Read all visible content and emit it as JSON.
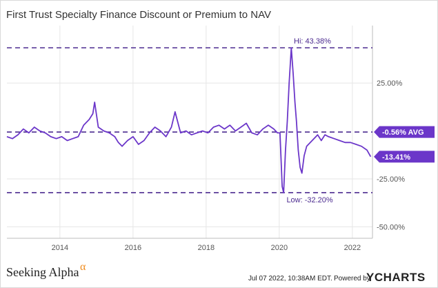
{
  "chart_data": {
    "type": "line",
    "title": "First Trust Specialty Finance Discount or Premium to NAV",
    "y_tick_labels": [
      "25.00%",
      "-25.00%",
      "-50.00%"
    ],
    "y_ticks": [
      25,
      -25,
      -50
    ],
    "x_tick_labels": [
      "2014",
      "2016",
      "2018",
      "2020",
      "2022"
    ],
    "x_ticks": [
      2014,
      2016,
      2018,
      2020,
      2022
    ],
    "xlim": [
      2012.55,
      2022.55
    ],
    "ylim": [
      -56,
      55
    ],
    "series": [
      {
        "color": "#6b36c9",
        "x": [
          2012.55,
          2012.7,
          2012.85,
          2013.0,
          2013.15,
          2013.3,
          2013.45,
          2013.6,
          2013.75,
          2013.9,
          2014.05,
          2014.2,
          2014.35,
          2014.5,
          2014.65,
          2014.8,
          2014.9,
          2014.95,
          2015.05,
          2015.2,
          2015.35,
          2015.5,
          2015.6,
          2015.7,
          2015.85,
          2016.0,
          2016.15,
          2016.3,
          2016.45,
          2016.6,
          2016.75,
          2016.9,
          2017.05,
          2017.15,
          2017.3,
          2017.45,
          2017.6,
          2017.75,
          2017.9,
          2018.05,
          2018.2,
          2018.35,
          2018.5,
          2018.65,
          2018.8,
          2018.95,
          2019.1,
          2019.25,
          2019.4,
          2019.55,
          2019.7,
          2019.85,
          2019.95,
          2020.02,
          2020.08,
          2020.12,
          2020.17,
          2020.22,
          2020.27,
          2020.33,
          2020.38,
          2020.43,
          2020.47,
          2020.52,
          2020.57,
          2020.62,
          2020.68,
          2020.75,
          2020.85,
          2020.95,
          2021.05,
          2021.15,
          2021.25,
          2021.35,
          2021.5,
          2021.65,
          2021.8,
          2021.95,
          2022.1,
          2022.25,
          2022.4,
          2022.5
        ],
        "values": [
          -3,
          -4,
          -2,
          1,
          -1,
          2,
          0,
          -1,
          -3,
          -4,
          -3,
          -5,
          -4,
          -3,
          3,
          6,
          9,
          15,
          2,
          0,
          -1,
          -3,
          -6,
          -8,
          -5,
          -3,
          -7,
          -5,
          -1,
          2,
          0,
          -3,
          2,
          10,
          -1,
          0,
          -2,
          -1,
          0,
          -1,
          2,
          3,
          1,
          3,
          0,
          2,
          4,
          -1,
          -2,
          1,
          3,
          1,
          -1,
          -1,
          -29,
          -32.2,
          -10,
          5,
          25,
          43.38,
          30,
          15,
          5,
          -10,
          -19,
          -22,
          -13,
          -8,
          -6,
          -4,
          -2,
          -5,
          -2,
          -3,
          -4,
          -5,
          -6,
          -6,
          -7,
          -8,
          -10,
          -13.41
        ]
      }
    ],
    "reference_lines": [
      {
        "label": "Hi: 43.38%",
        "value": 43.38
      },
      {
        "label": "-0.56% AVG",
        "value": -0.56
      },
      {
        "label": "Low: -32.20%",
        "value": -32.2
      }
    ],
    "last_value_label": "-13.41%",
    "grid": true
  },
  "footer": {
    "brand_left": "Seeking Alpha",
    "brand_left_symbol": "α",
    "timestamp": "Jul 07 2022, 10:38AM EDT.",
    "powered_by": "Powered by",
    "brand_right": "YCHARTS"
  },
  "colors": {
    "line": "#6b36c9",
    "dashed": "#4b2a8f",
    "label_bg": "#6b36c9",
    "grid": "#e6e6e6",
    "alpha": "#f08c1e"
  }
}
